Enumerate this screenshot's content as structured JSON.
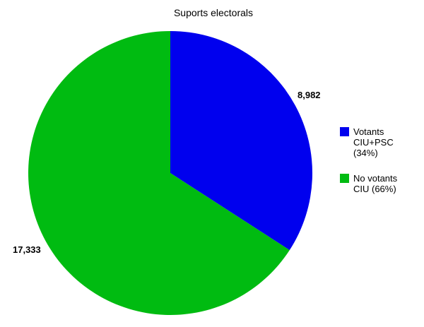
{
  "chart_data": {
    "type": "pie",
    "title": "Suports electorals",
    "slices": [
      {
        "legend_lines": [
          "Votants",
          "CIU+PSC",
          "(34%)"
        ],
        "value": 8982,
        "value_label": "8,982",
        "color": "#0000ee"
      },
      {
        "legend_lines": [
          "No votants",
          "CIU (66%)"
        ],
        "value": 17333,
        "value_label": "17,333",
        "color": "#00bb11"
      }
    ],
    "start_angle_deg": 0,
    "direction": "clockwise",
    "legend_position": "right"
  }
}
